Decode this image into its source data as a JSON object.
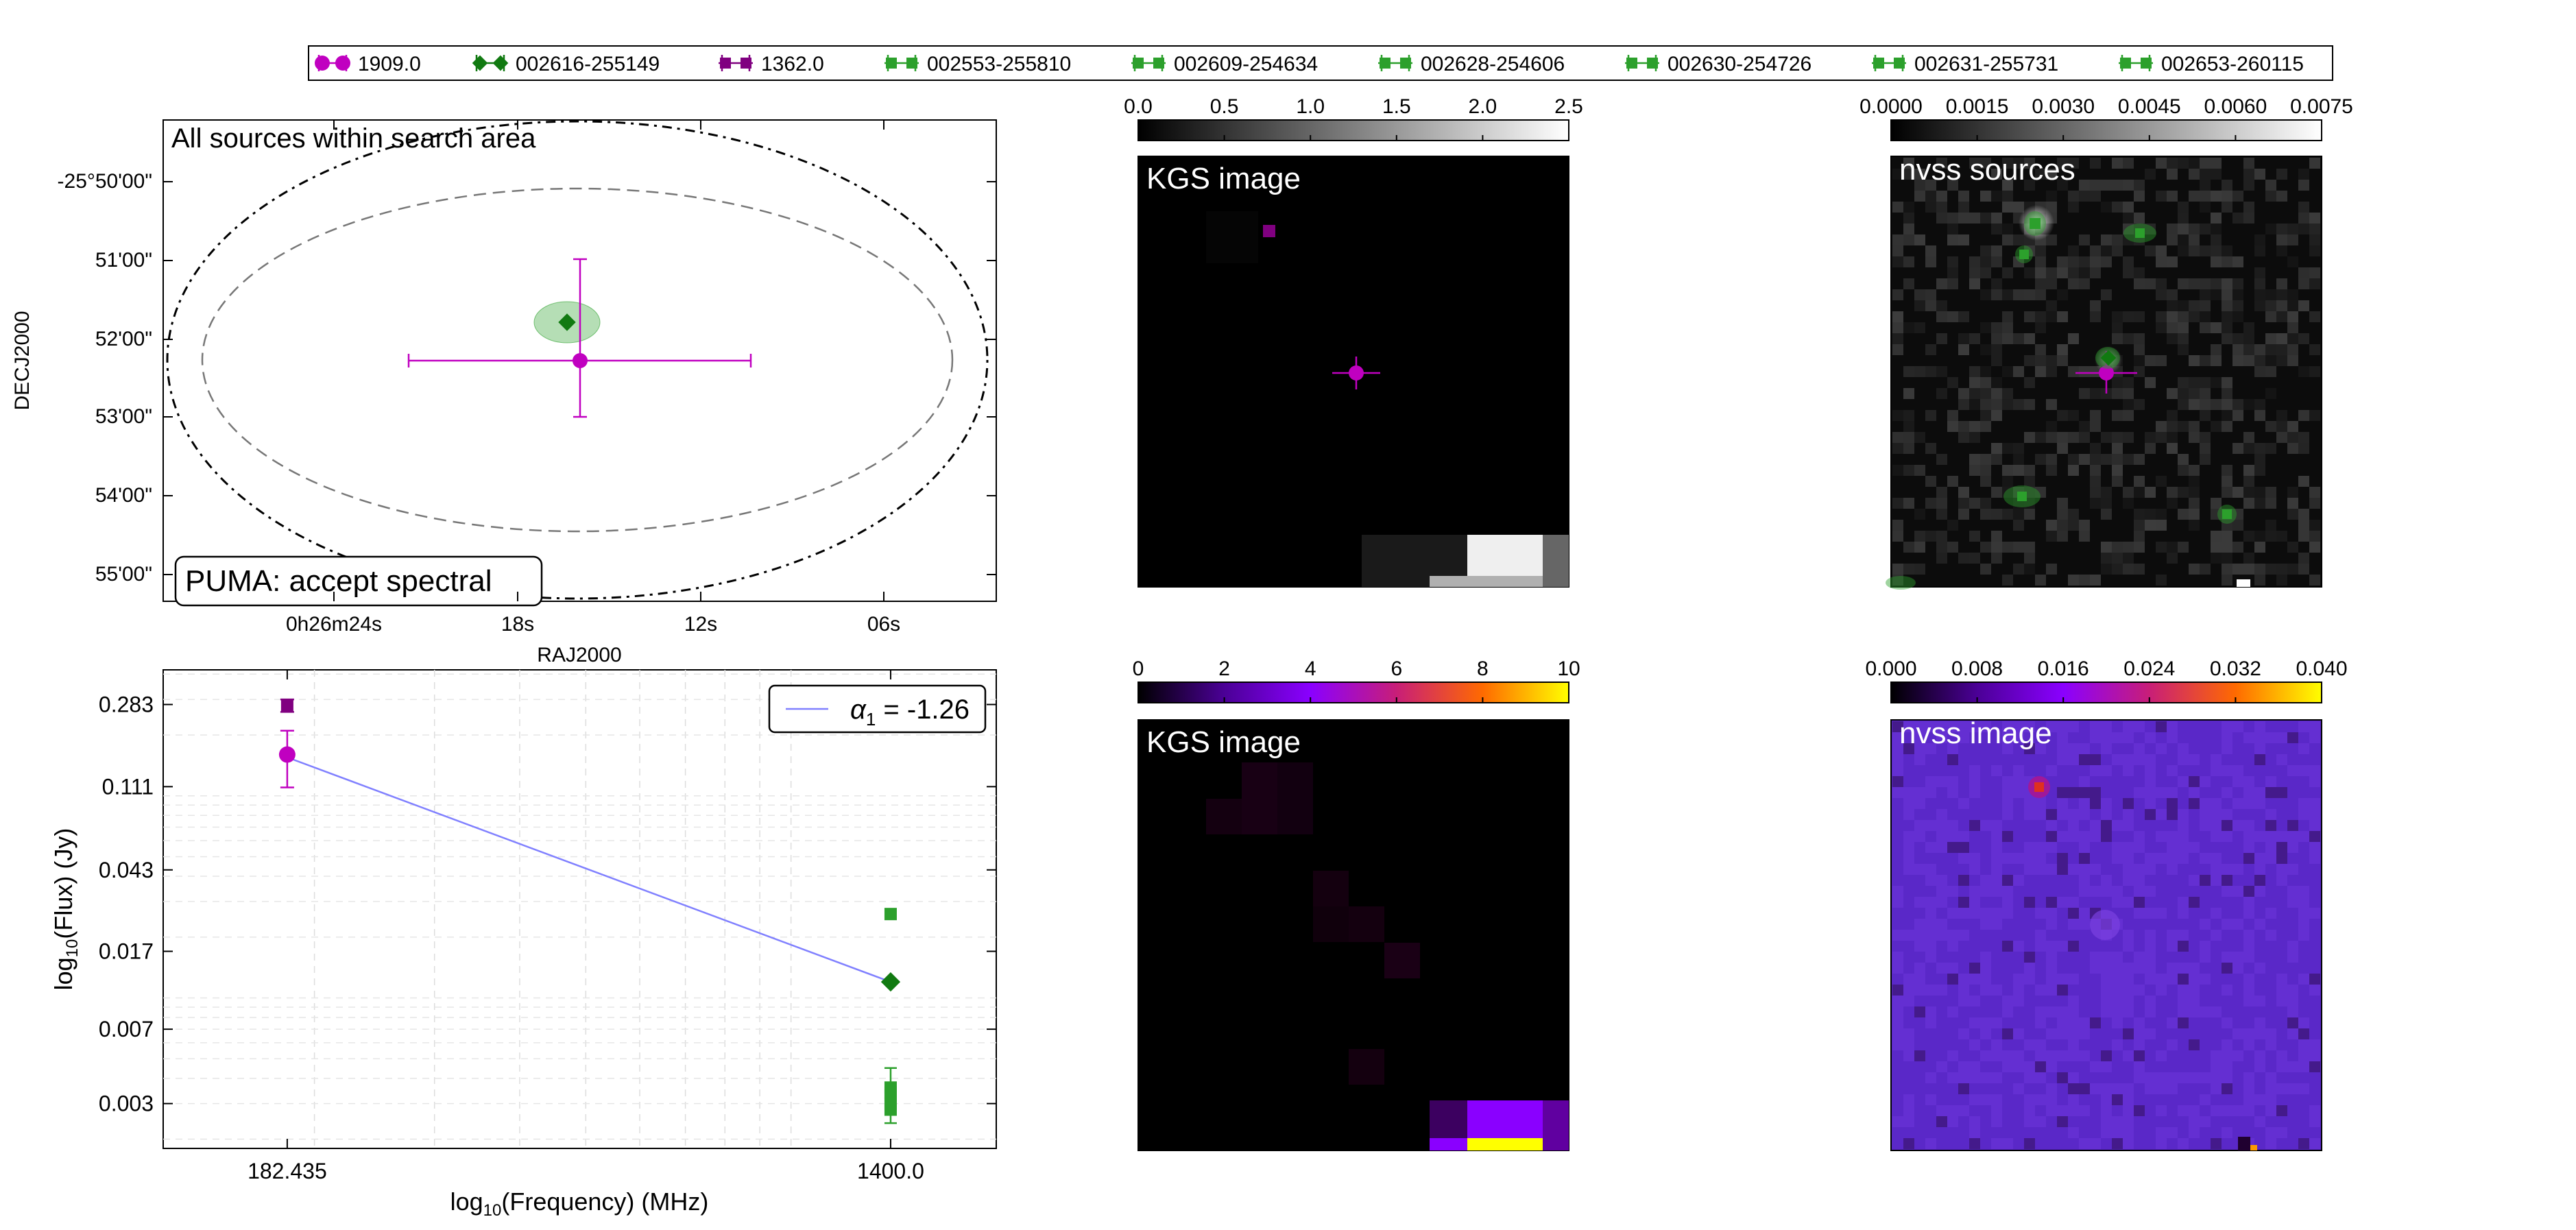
{
  "legend": [
    {
      "label": "1909.0",
      "color": "#c000c0",
      "marker": "circle"
    },
    {
      "label": "002616-255149",
      "color": "#117a11",
      "marker": "diamond"
    },
    {
      "label": "1362.0",
      "color": "#800080",
      "marker": "square"
    },
    {
      "label": "002553-255810",
      "color": "#2ca02c",
      "marker": "square"
    },
    {
      "label": "002609-254634",
      "color": "#2ca02c",
      "marker": "square"
    },
    {
      "label": "002628-254606",
      "color": "#2ca02c",
      "marker": "square"
    },
    {
      "label": "002630-254726",
      "color": "#2ca02c",
      "marker": "square"
    },
    {
      "label": "002631-255731",
      "color": "#2ca02c",
      "marker": "square"
    },
    {
      "label": "002653-260115",
      "color": "#2ca02c",
      "marker": "square"
    }
  ],
  "sky_panel": {
    "title": "All sources within search area",
    "badge": "PUMA: accept spectral",
    "xlabel": "RAJ2000",
    "ylabel": "DECJ2000",
    "xticks": [
      "0h26m24s",
      "18s",
      "12s",
      "06s"
    ],
    "yticks": [
      "-25°50'00\"",
      "51'00\"",
      "52'00\"",
      "53'00\"",
      "54'00\"",
      "55'00\""
    ]
  },
  "spectrum_panel": {
    "xlabel": "log",
    "xlabel_sub": "10",
    "xlabel_rest": "(Frequency) (MHz)",
    "ylabel": "log",
    "ylabel_sub": "10",
    "ylabel_rest": "(Flux) (Jy)",
    "xticks": [
      "182.435",
      "1400.0"
    ],
    "yticks": [
      "0.283",
      "0.111",
      "0.043",
      "0.017",
      "0.007",
      "0.003"
    ],
    "fit_label": "α",
    "fit_sub": "1",
    "fit_value": " = -1.26"
  },
  "image_panels": [
    {
      "title": "KGS image",
      "cbar_ticks": [
        "0.0",
        "0.5",
        "1.0",
        "1.5",
        "2.0",
        "2.5"
      ]
    },
    {
      "title": "nvss sources",
      "cbar_ticks": [
        "0.0000",
        "0.0015",
        "0.0030",
        "0.0045",
        "0.0060",
        "0.0075"
      ]
    },
    {
      "title": "KGS image",
      "cbar_ticks": [
        "0",
        "2",
        "4",
        "6",
        "8",
        "10"
      ]
    },
    {
      "title": "nvss image",
      "cbar_ticks": [
        "0.000",
        "0.008",
        "0.016",
        "0.024",
        "0.032",
        "0.040"
      ]
    }
  ],
  "colors": {
    "magenta": "#c000c0",
    "dark_green": "#117a11",
    "purple": "#800080",
    "green": "#2ca02c",
    "fit_line": "#8080ff"
  },
  "chart_data": {
    "type": "scatter",
    "x_scale": "log",
    "y_scale": "log",
    "xlabel": "log10(Frequency) (MHz)",
    "ylabel": "log10(Flux) (Jy)",
    "series": [
      {
        "name": "1909.0",
        "x": [
          182.435
        ],
        "y": [
          0.16
        ],
        "yerr_low": [
          0.05
        ],
        "yerr_high": [
          0.05
        ]
      },
      {
        "name": "1362.0",
        "x": [
          182.435
        ],
        "y": [
          0.28
        ],
        "yerr_low": [
          0.02
        ],
        "yerr_high": [
          0.02
        ]
      },
      {
        "name": "002616-255149",
        "x": [
          1400.0
        ],
        "y": [
          0.012
        ]
      },
      {
        "name": "002553-255810",
        "x": [
          1400.0
        ],
        "y": [
          0.026
        ]
      },
      {
        "name": "002609-254634",
        "x": [
          1400.0
        ],
        "y": [
          0.0036
        ]
      },
      {
        "name": "002628-254606",
        "x": [
          1400.0
        ],
        "y": [
          0.0033
        ]
      },
      {
        "name": "002630-254726",
        "x": [
          1400.0
        ],
        "y": [
          0.003
        ]
      },
      {
        "name": "002631-255731",
        "x": [
          1400.0
        ],
        "y": [
          0.0034
        ]
      },
      {
        "name": "002653-260115",
        "x": [
          1400.0
        ],
        "y": [
          0.0028
        ]
      }
    ],
    "fit": {
      "alpha": -1.26,
      "x": [
        182.435,
        1400.0
      ],
      "y": [
        0.155,
        0.012
      ]
    },
    "yticks": [
      0.283,
      0.111,
      0.043,
      0.017,
      0.007,
      0.003
    ],
    "xticks": [
      182.435,
      1400.0
    ],
    "legend_position": "top-right",
    "grid": true
  }
}
